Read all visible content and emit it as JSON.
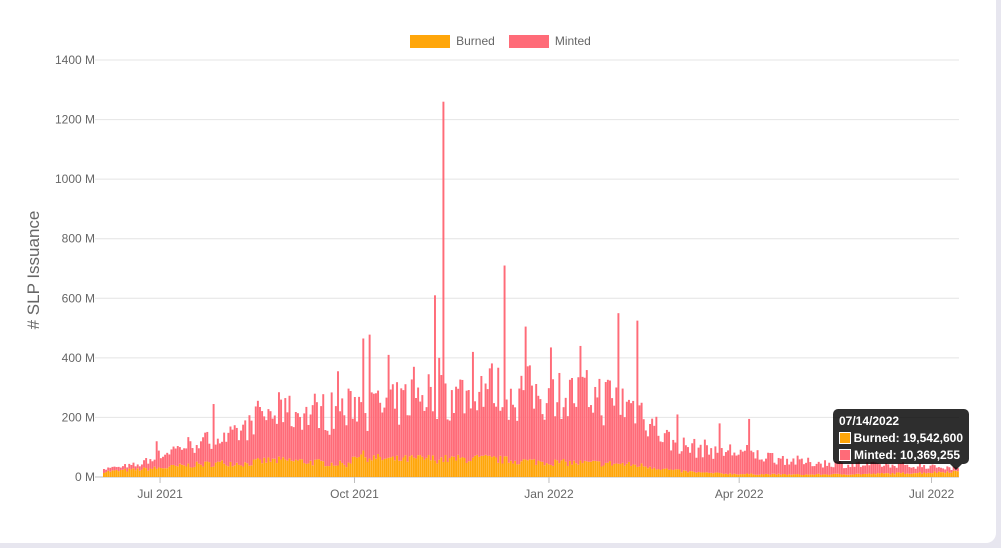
{
  "chart_data": {
    "type": "bar",
    "stacked": true,
    "title": "",
    "xlabel": "",
    "ylabel": "# SLP Issuance",
    "ylim": [
      0,
      1400000000
    ],
    "y_ticks": [
      "0 M",
      "200 M",
      "400 M",
      "600 M",
      "800 M",
      "1000 M",
      "1200 M",
      "1400 M"
    ],
    "y_tick_values": [
      0,
      200000000,
      400000000,
      600000000,
      800000000,
      1000000000,
      1200000000,
      1400000000
    ],
    "x_start": "2021-06-04",
    "x_end": "2022-07-14",
    "x_ticks": [
      {
        "label": "Jul 2021",
        "date": "2021-07-01"
      },
      {
        "label": "Oct 2021",
        "date": "2021-10-01"
      },
      {
        "label": "Jan 2022",
        "date": "2022-01-01"
      },
      {
        "label": "Apr 2022",
        "date": "2022-04-01"
      },
      {
        "label": "Jul 2022",
        "date": "2022-07-01"
      }
    ],
    "grid": true,
    "legend_position": "top",
    "series": [
      {
        "name": "Burned",
        "color": "#FFA60A",
        "points": [
          [
            "2021-06-04",
            18
          ],
          [
            "2021-06-20",
            25
          ],
          [
            "2021-07-01",
            30
          ],
          [
            "2021-07-15",
            40
          ],
          [
            "2021-08-01",
            48
          ],
          [
            "2021-08-10",
            45
          ],
          [
            "2021-08-20",
            55
          ],
          [
            "2021-09-01",
            55
          ],
          [
            "2021-09-15",
            48
          ],
          [
            "2021-09-28",
            42
          ],
          [
            "2021-10-01",
            80
          ],
          [
            "2021-10-08",
            65
          ],
          [
            "2021-10-20",
            58
          ],
          [
            "2021-11-01",
            62
          ],
          [
            "2021-11-15",
            60
          ],
          [
            "2021-12-01",
            62
          ],
          [
            "2021-12-15",
            55
          ],
          [
            "2022-01-01",
            50
          ],
          [
            "2022-01-15",
            47
          ],
          [
            "2022-02-01",
            45
          ],
          [
            "2022-02-15",
            38
          ],
          [
            "2022-03-01",
            22
          ],
          [
            "2022-03-15",
            14
          ],
          [
            "2022-04-01",
            10
          ],
          [
            "2022-05-01",
            8
          ],
          [
            "2022-06-01",
            10
          ],
          [
            "2022-07-01",
            15
          ],
          [
            "2022-07-14",
            19.5426
          ]
        ]
      },
      {
        "name": "Minted",
        "color": "#FF6B78",
        "points": [
          [
            "2021-06-04",
            10
          ],
          [
            "2021-06-20",
            15
          ],
          [
            "2021-07-01",
            45
          ],
          [
            "2021-07-15",
            70
          ],
          [
            "2021-08-01",
            80
          ],
          [
            "2021-08-10",
            120
          ],
          [
            "2021-08-20",
            155
          ],
          [
            "2021-09-01",
            155
          ],
          [
            "2021-09-15",
            170
          ],
          [
            "2021-09-28",
            180
          ],
          [
            "2021-10-01",
            185
          ],
          [
            "2021-10-08",
            170
          ],
          [
            "2021-10-20",
            175
          ],
          [
            "2021-11-01",
            220
          ],
          [
            "2021-11-15",
            205
          ],
          [
            "2021-12-01",
            240
          ],
          [
            "2021-12-15",
            230
          ],
          [
            "2022-01-01",
            230
          ],
          [
            "2022-01-15",
            225
          ],
          [
            "2022-02-01",
            215
          ],
          [
            "2022-02-15",
            180
          ],
          [
            "2022-03-01",
            85
          ],
          [
            "2022-03-15",
            80
          ],
          [
            "2022-04-01",
            75
          ],
          [
            "2022-05-01",
            42
          ],
          [
            "2022-06-01",
            30
          ],
          [
            "2022-07-01",
            22
          ],
          [
            "2022-07-14",
            10.369255
          ]
        ],
        "spikes": [
          [
            "2021-06-29",
            120
          ],
          [
            "2021-07-26",
            245
          ],
          [
            "2021-08-17",
            235
          ],
          [
            "2021-08-29",
            265
          ],
          [
            "2021-09-23",
            355
          ],
          [
            "2021-10-05",
            465
          ],
          [
            "2021-10-08",
            478
          ],
          [
            "2021-10-17",
            410
          ],
          [
            "2021-10-29",
            370
          ],
          [
            "2021-11-08",
            610
          ],
          [
            "2021-11-10",
            400
          ],
          [
            "2021-11-12",
            1260
          ],
          [
            "2021-11-26",
            420
          ],
          [
            "2021-12-11",
            710
          ],
          [
            "2021-12-21",
            505
          ],
          [
            "2022-01-02",
            435
          ],
          [
            "2022-01-16",
            440
          ],
          [
            "2022-02-03",
            550
          ],
          [
            "2022-02-12",
            525
          ],
          [
            "2022-03-03",
            210
          ],
          [
            "2022-03-23",
            180
          ],
          [
            "2022-04-06",
            195
          ]
        ]
      }
    ]
  },
  "legend": {
    "burned_label": "Burned",
    "minted_label": "Minted"
  },
  "tooltip": {
    "date": "07/14/2022",
    "burned_text": "Burned: 19,542,600",
    "minted_text": "Minted: 10,369,255"
  }
}
